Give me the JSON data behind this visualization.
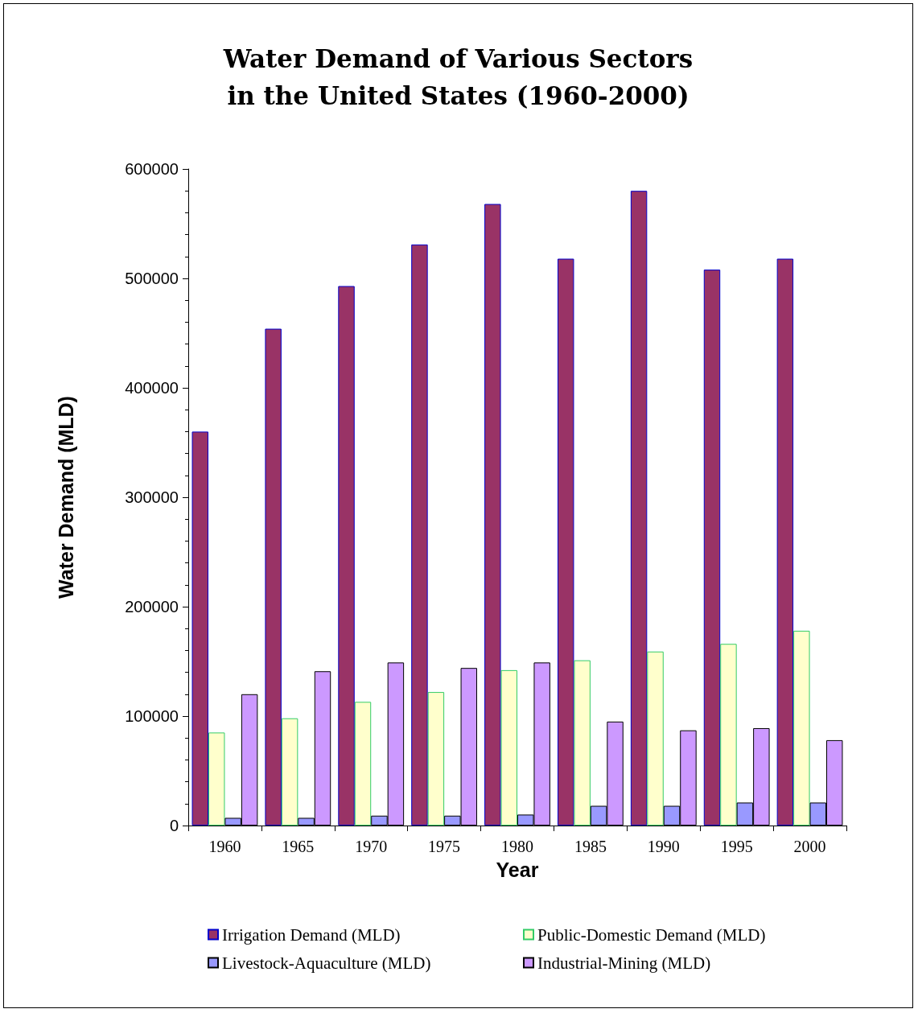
{
  "chart_data": {
    "type": "bar",
    "title": "Water Demand of Various Sectors\nin the United States (1960-2000)",
    "xlabel": "Year",
    "ylabel": "Water Demand (MLD)",
    "categories": [
      "1960",
      "1965",
      "1970",
      "1975",
      "1980",
      "1985",
      "1990",
      "1995",
      "2000"
    ],
    "series": [
      {
        "name": "Irrigation Demand (MLD)",
        "color": "#993366",
        "values": [
          360000,
          454000,
          493000,
          531000,
          568000,
          518000,
          580000,
          508000,
          518000
        ]
      },
      {
        "name": "Public-Domestic Demand (MLD)",
        "color": "#ffffcc",
        "values": [
          85000,
          98000,
          113000,
          122000,
          142000,
          151000,
          159000,
          166000,
          178000
        ]
      },
      {
        "name": "Livestock-Aquaculture (MLD)",
        "color": "#9999ff",
        "values": [
          7000,
          7000,
          9000,
          9000,
          10000,
          18000,
          18000,
          21000,
          21000
        ]
      },
      {
        "name": "Industrial-Mining (MLD)",
        "color": "#cc99ff",
        "values": [
          120000,
          141000,
          149000,
          144000,
          149000,
          95000,
          87000,
          89000,
          78000
        ]
      }
    ],
    "ylim": [
      0,
      600000
    ],
    "yticks": [
      0,
      100000,
      200000,
      300000,
      400000,
      500000,
      600000
    ],
    "grid": false,
    "legend": "bottom"
  }
}
